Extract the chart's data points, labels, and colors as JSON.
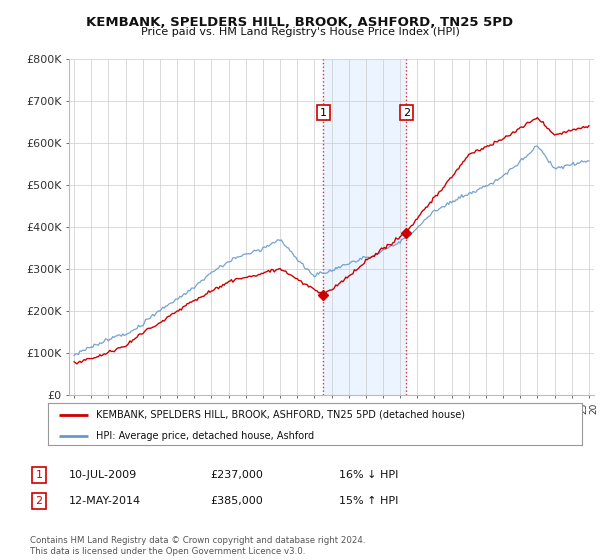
{
  "title": "KEMBANK, SPELDERS HILL, BROOK, ASHFORD, TN25 5PD",
  "subtitle": "Price paid vs. HM Land Registry's House Price Index (HPI)",
  "ylim": [
    0,
    800000
  ],
  "yticks": [
    0,
    100000,
    200000,
    300000,
    400000,
    500000,
    600000,
    700000,
    800000
  ],
  "ytick_labels": [
    "£0",
    "£100K",
    "£200K",
    "£300K",
    "£400K",
    "£500K",
    "£600K",
    "£700K",
    "£800K"
  ],
  "xlim_start": 1994.7,
  "xlim_end": 2025.3,
  "sale1_x": 2009.53,
  "sale1_y": 237000,
  "sale2_x": 2014.36,
  "sale2_y": 385000,
  "highlight_color": "#ddeeff",
  "highlight_alpha": 0.55,
  "vline_color": "#dd3333",
  "legend_line1_label": "KEMBANK, SPELDERS HILL, BROOK, ASHFORD, TN25 5PD (detached house)",
  "legend_line1_color": "#cc0000",
  "legend_line2_label": "HPI: Average price, detached house, Ashford",
  "legend_line2_color": "#6699cc",
  "table_row1": [
    "1",
    "10-JUL-2009",
    "£237,000",
    "16% ↓ HPI"
  ],
  "table_row2": [
    "2",
    "12-MAY-2014",
    "£385,000",
    "15% ↑ HPI"
  ],
  "footer_text": "Contains HM Land Registry data © Crown copyright and database right 2024.\nThis data is licensed under the Open Government Licence v3.0.",
  "background_color": "#ffffff",
  "grid_color": "#cccccc"
}
